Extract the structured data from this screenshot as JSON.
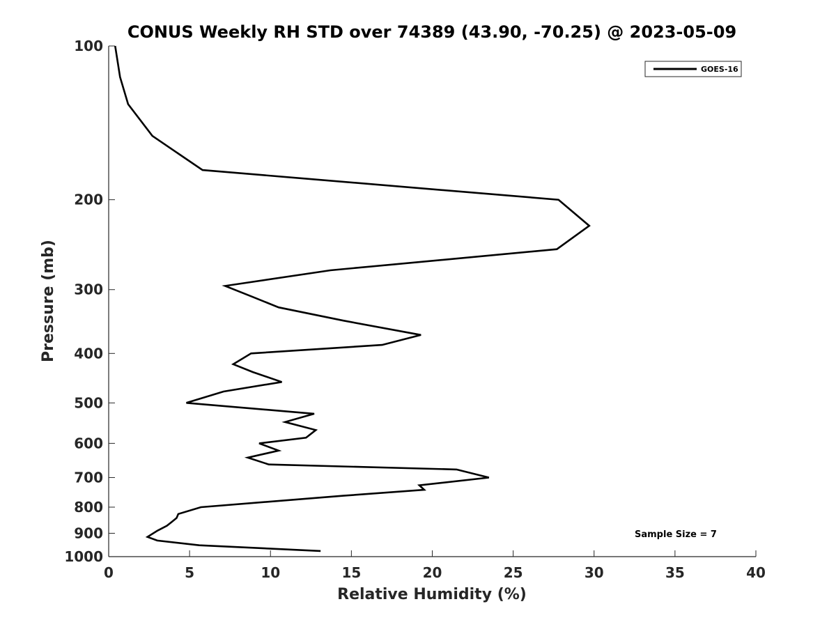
{
  "chart_data": {
    "type": "line",
    "title": "CONUS Weekly RH STD over 74389 (43.90, -70.25) @ 2023-05-09",
    "xlabel": "Relative Humidity (%)",
    "ylabel": "Pressure (mb)",
    "xlim": [
      0,
      40
    ],
    "ylim": [
      100,
      1000
    ],
    "y_scale": "log",
    "y_reversed": true,
    "grid": false,
    "legend_position": "top-right",
    "x_ticks": [
      0,
      5,
      10,
      15,
      20,
      25,
      30,
      35,
      40
    ],
    "x_tick_labels": [
      "0",
      "5",
      "10",
      "15",
      "20",
      "25",
      "30",
      "35",
      "40"
    ],
    "y_ticks": [
      100,
      200,
      300,
      400,
      500,
      600,
      700,
      800,
      900,
      1000
    ],
    "y_tick_labels": [
      "100",
      "200",
      "300",
      "400",
      "500",
      "600",
      "700",
      "800",
      "900",
      "1000"
    ],
    "series": [
      {
        "name": "GOES-16",
        "color": "#000000",
        "x": [
          0.4,
          0.7,
          1.2,
          2.7,
          5.8,
          27.8,
          29.7,
          27.7,
          13.7,
          7.2,
          8.9,
          10.5,
          14.5,
          19.3,
          16.9,
          8.8,
          7.7,
          8.9,
          10.7,
          7.1,
          4.8,
          12.7,
          10.9,
          12.8,
          12.2,
          9.3,
          10.5,
          8.6,
          9.9,
          21.5,
          23.5,
          19.2,
          19.5,
          14.5,
          5.7,
          4.3,
          4.2,
          3.9,
          3.6,
          3.0,
          2.4,
          3.0,
          5.6,
          13.1
        ],
        "y": [
          100,
          115,
          130,
          150,
          175,
          200,
          225,
          250,
          275,
          295,
          310,
          325,
          345,
          368,
          385,
          400,
          420,
          435,
          455,
          475,
          500,
          525,
          545,
          565,
          585,
          600,
          620,
          640,
          660,
          675,
          700,
          725,
          740,
          760,
          800,
          825,
          840,
          855,
          870,
          890,
          915,
          930,
          950,
          975
        ]
      }
    ],
    "annotation": "Sample Size = 7"
  }
}
